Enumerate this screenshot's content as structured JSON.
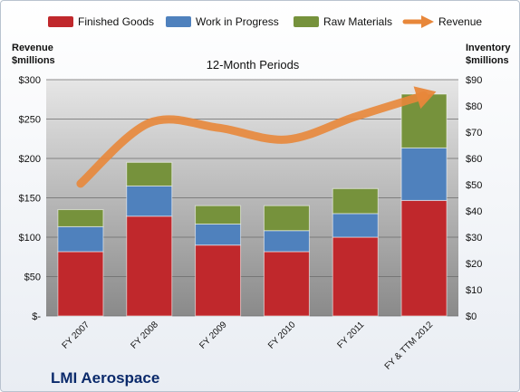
{
  "chart_data": {
    "type": "bar",
    "subtitle": "12-Month Periods",
    "company": "LMI Aerospace",
    "ylabel_left": [
      "Revenue",
      "$millions"
    ],
    "ylabel_right": [
      "Inventory",
      "$millions"
    ],
    "categories": [
      "FY 2007",
      "FY 2008",
      "FY 2009",
      "FY 2010",
      "FY 2011",
      "FY & TTM 2012"
    ],
    "left_axis": {
      "min": 0,
      "max": 300,
      "ticks": [
        "$-",
        "$50",
        "$100",
        "$150",
        "$200",
        "$250",
        "$300"
      ]
    },
    "right_axis": {
      "min": 0,
      "max": 90,
      "ticks": [
        "$0",
        "$10",
        "$20",
        "$30",
        "$40",
        "$50",
        "$60",
        "$70",
        "$80",
        "$90"
      ]
    },
    "series": [
      {
        "name": "Finished Goods",
        "axis": "right",
        "kind": "stacked-bar",
        "color": "#c0282c",
        "values": [
          24.5,
          38.0,
          27.0,
          24.5,
          30.0,
          44.0
        ]
      },
      {
        "name": "Work in Progress",
        "axis": "right",
        "kind": "stacked-bar",
        "color": "#4f81bd",
        "values": [
          9.5,
          11.5,
          8.0,
          8.0,
          9.0,
          20.0
        ]
      },
      {
        "name": "Raw Materials",
        "axis": "right",
        "kind": "stacked-bar",
        "color": "#76923c",
        "values": [
          6.5,
          9.0,
          7.0,
          9.5,
          9.5,
          20.5
        ]
      },
      {
        "name": "Revenue",
        "axis": "left",
        "kind": "line-arrow",
        "color": "#e8873a",
        "values": [
          168,
          245,
          239,
          224,
          253,
          280
        ]
      }
    ],
    "grid": true,
    "legend": "top"
  }
}
